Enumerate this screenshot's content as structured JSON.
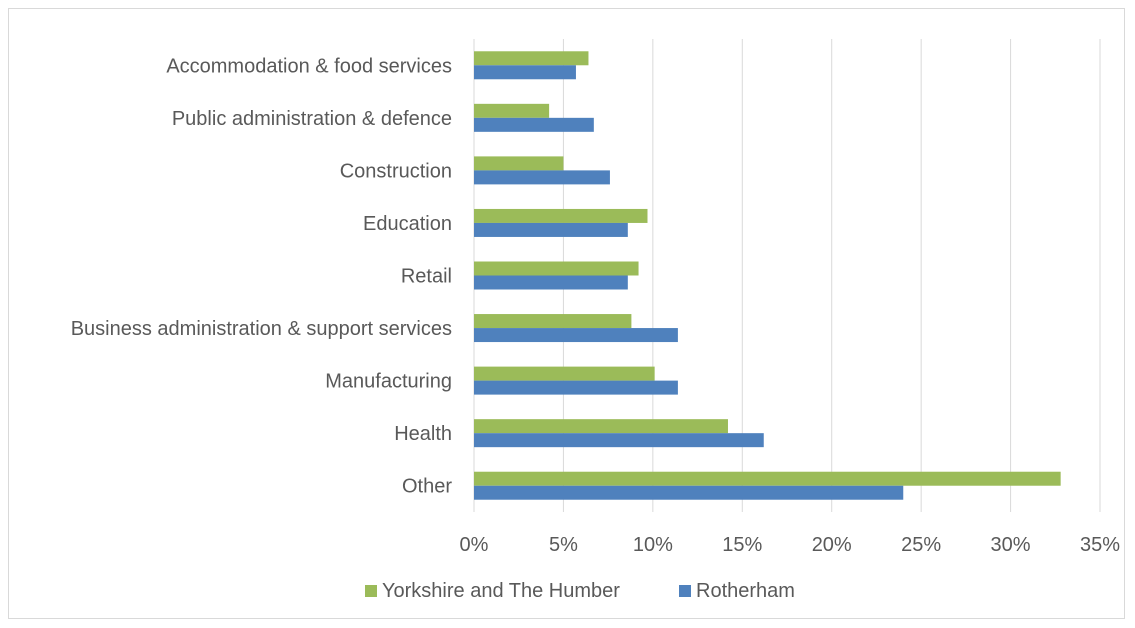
{
  "chart_data": {
    "type": "bar",
    "orientation": "horizontal",
    "categories": [
      "Accommodation & food services",
      "Public administration & defence",
      "Construction",
      "Education",
      "Retail",
      "Business administration & support services",
      "Manufacturing",
      "Health",
      "Other"
    ],
    "series": [
      {
        "name": "Yorkshire and The Humber",
        "color": "#9bbb59",
        "values": [
          6.4,
          4.2,
          5.0,
          9.7,
          9.2,
          8.8,
          10.1,
          14.2,
          32.8
        ]
      },
      {
        "name": "Rotherham",
        "color": "#4f81bd",
        "values": [
          5.7,
          6.7,
          7.6,
          8.6,
          8.6,
          11.4,
          11.4,
          16.2,
          24.0
        ]
      }
    ],
    "xlim": [
      0,
      35
    ],
    "xticks": [
      0,
      5,
      10,
      15,
      20,
      25,
      30,
      35
    ],
    "tick_suffix": "%",
    "xgrid": true,
    "legend_position": "bottom"
  }
}
